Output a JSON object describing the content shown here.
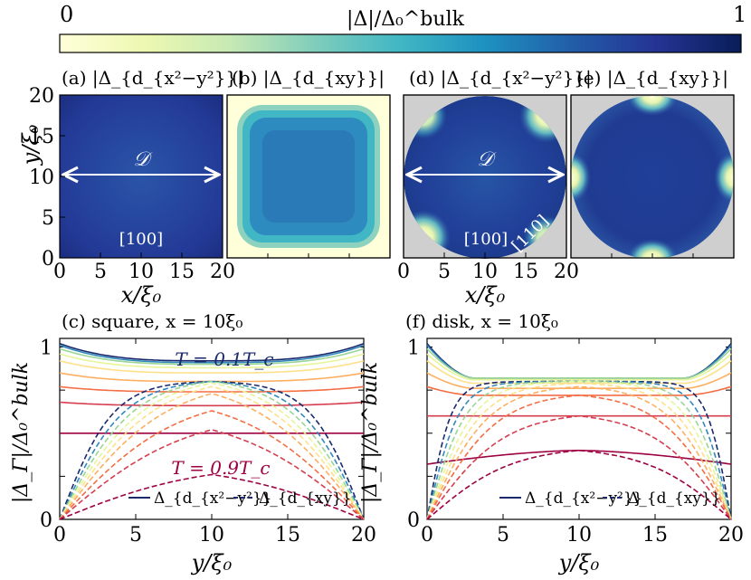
{
  "colorbar": {
    "min_label": "0",
    "max_label": "1",
    "title": "|Δ|/Δ₀^bulk",
    "colormap": [
      "#ffffd9",
      "#edf8b1",
      "#c7e9b4",
      "#7fcdbb",
      "#41b6c4",
      "#1d91c0",
      "#225ea8",
      "#253494",
      "#081d58"
    ]
  },
  "panels": {
    "a": {
      "label": "(a) |Δ_{d_{x²−y²}}|"
    },
    "b": {
      "label": "(b) |Δ_{d_{xy}}|"
    },
    "d": {
      "label": "(d) |Δ_{d_{x²−y²}}|"
    },
    "e": {
      "label": "(e) |Δ_{d_{xy}}|"
    }
  },
  "maps": {
    "x_ticks": [
      "0",
      "5",
      "10",
      "15",
      "20"
    ],
    "y_ticks": [
      "0",
      "5",
      "10",
      "15",
      "20"
    ],
    "xlabel": "x/ξ₀",
    "ylabel": "y/ξ₀",
    "diameter_label": "𝒟",
    "dir_100": "[100]",
    "dir_110": "[110]",
    "outside_color": "#cfcfcf"
  },
  "chart_data": [
    {
      "id": "c",
      "type": "line",
      "title": "(c) square, x = 10ξ₀",
      "xlabel": "y/ξ₀",
      "ylabel": "|Δ_Γ|/Δ₀^bulk",
      "xlim": [
        0,
        20
      ],
      "ylim": [
        0,
        1.05
      ],
      "x_ticks": [
        "0",
        "5",
        "10",
        "15",
        "20"
      ],
      "y_ticks": [
        "0",
        "1"
      ],
      "annotations": [
        "T = 0.1T_c",
        "T = 0.9T_c"
      ],
      "legend": [
        "Δ_{d_{x²−y²}}",
        "Δ_{d_{xy}}"
      ],
      "temperatures": [
        0.1,
        0.2,
        0.3,
        0.4,
        0.5,
        0.6,
        0.7,
        0.8,
        0.9
      ],
      "series": [
        {
          "name": "dx2y2 T=0.1",
          "values": [
            {
              "edge": 1.02,
              "center": 0.92
            }
          ]
        },
        {
          "name": "dxy T=0.1",
          "values": [
            {
              "plateau": 0.8
            }
          ]
        }
      ],
      "dx2y2": {
        "edge": [
          1.02,
          1.01,
          0.99,
          0.96,
          0.92,
          0.85,
          0.77,
          0.68,
          0.5
        ],
        "center": [
          0.92,
          0.91,
          0.9,
          0.88,
          0.85,
          0.8,
          0.74,
          0.66,
          0.5
        ]
      },
      "dxy": {
        "plateau": [
          0.8,
          0.8,
          0.8,
          0.79,
          0.77,
          0.73,
          0.63,
          0.52,
          0.26
        ]
      }
    },
    {
      "id": "f",
      "type": "line",
      "title": "(f) disk, x = 10ξ₀",
      "xlabel": "y/ξ₀",
      "ylabel": "|Δ_Γ|/Δ₀^bulk",
      "xlim": [
        0,
        20
      ],
      "ylim": [
        0,
        1.05
      ],
      "x_ticks": [
        "0",
        "5",
        "10",
        "15",
        "20"
      ],
      "y_ticks": [
        "0",
        "1"
      ],
      "legend": [
        "Δ_{d_{x²−y²}}",
        "Δ_{d_{xy}}"
      ],
      "temperatures": [
        0.1,
        0.2,
        0.3,
        0.4,
        0.5,
        0.6,
        0.7,
        0.8,
        0.9
      ],
      "dx2y2": {
        "edge": [
          1.02,
          1.01,
          0.99,
          0.96,
          0.92,
          0.85,
          0.77,
          0.6,
          0.35
        ],
        "center": [
          0.82,
          0.82,
          0.82,
          0.81,
          0.79,
          0.76,
          0.72,
          0.6,
          0.4
        ]
      },
      "dxy": {
        "plateau": [
          0.8,
          0.8,
          0.8,
          0.8,
          0.79,
          0.77,
          0.72,
          0.6,
          0.4
        ]
      }
    }
  ]
}
